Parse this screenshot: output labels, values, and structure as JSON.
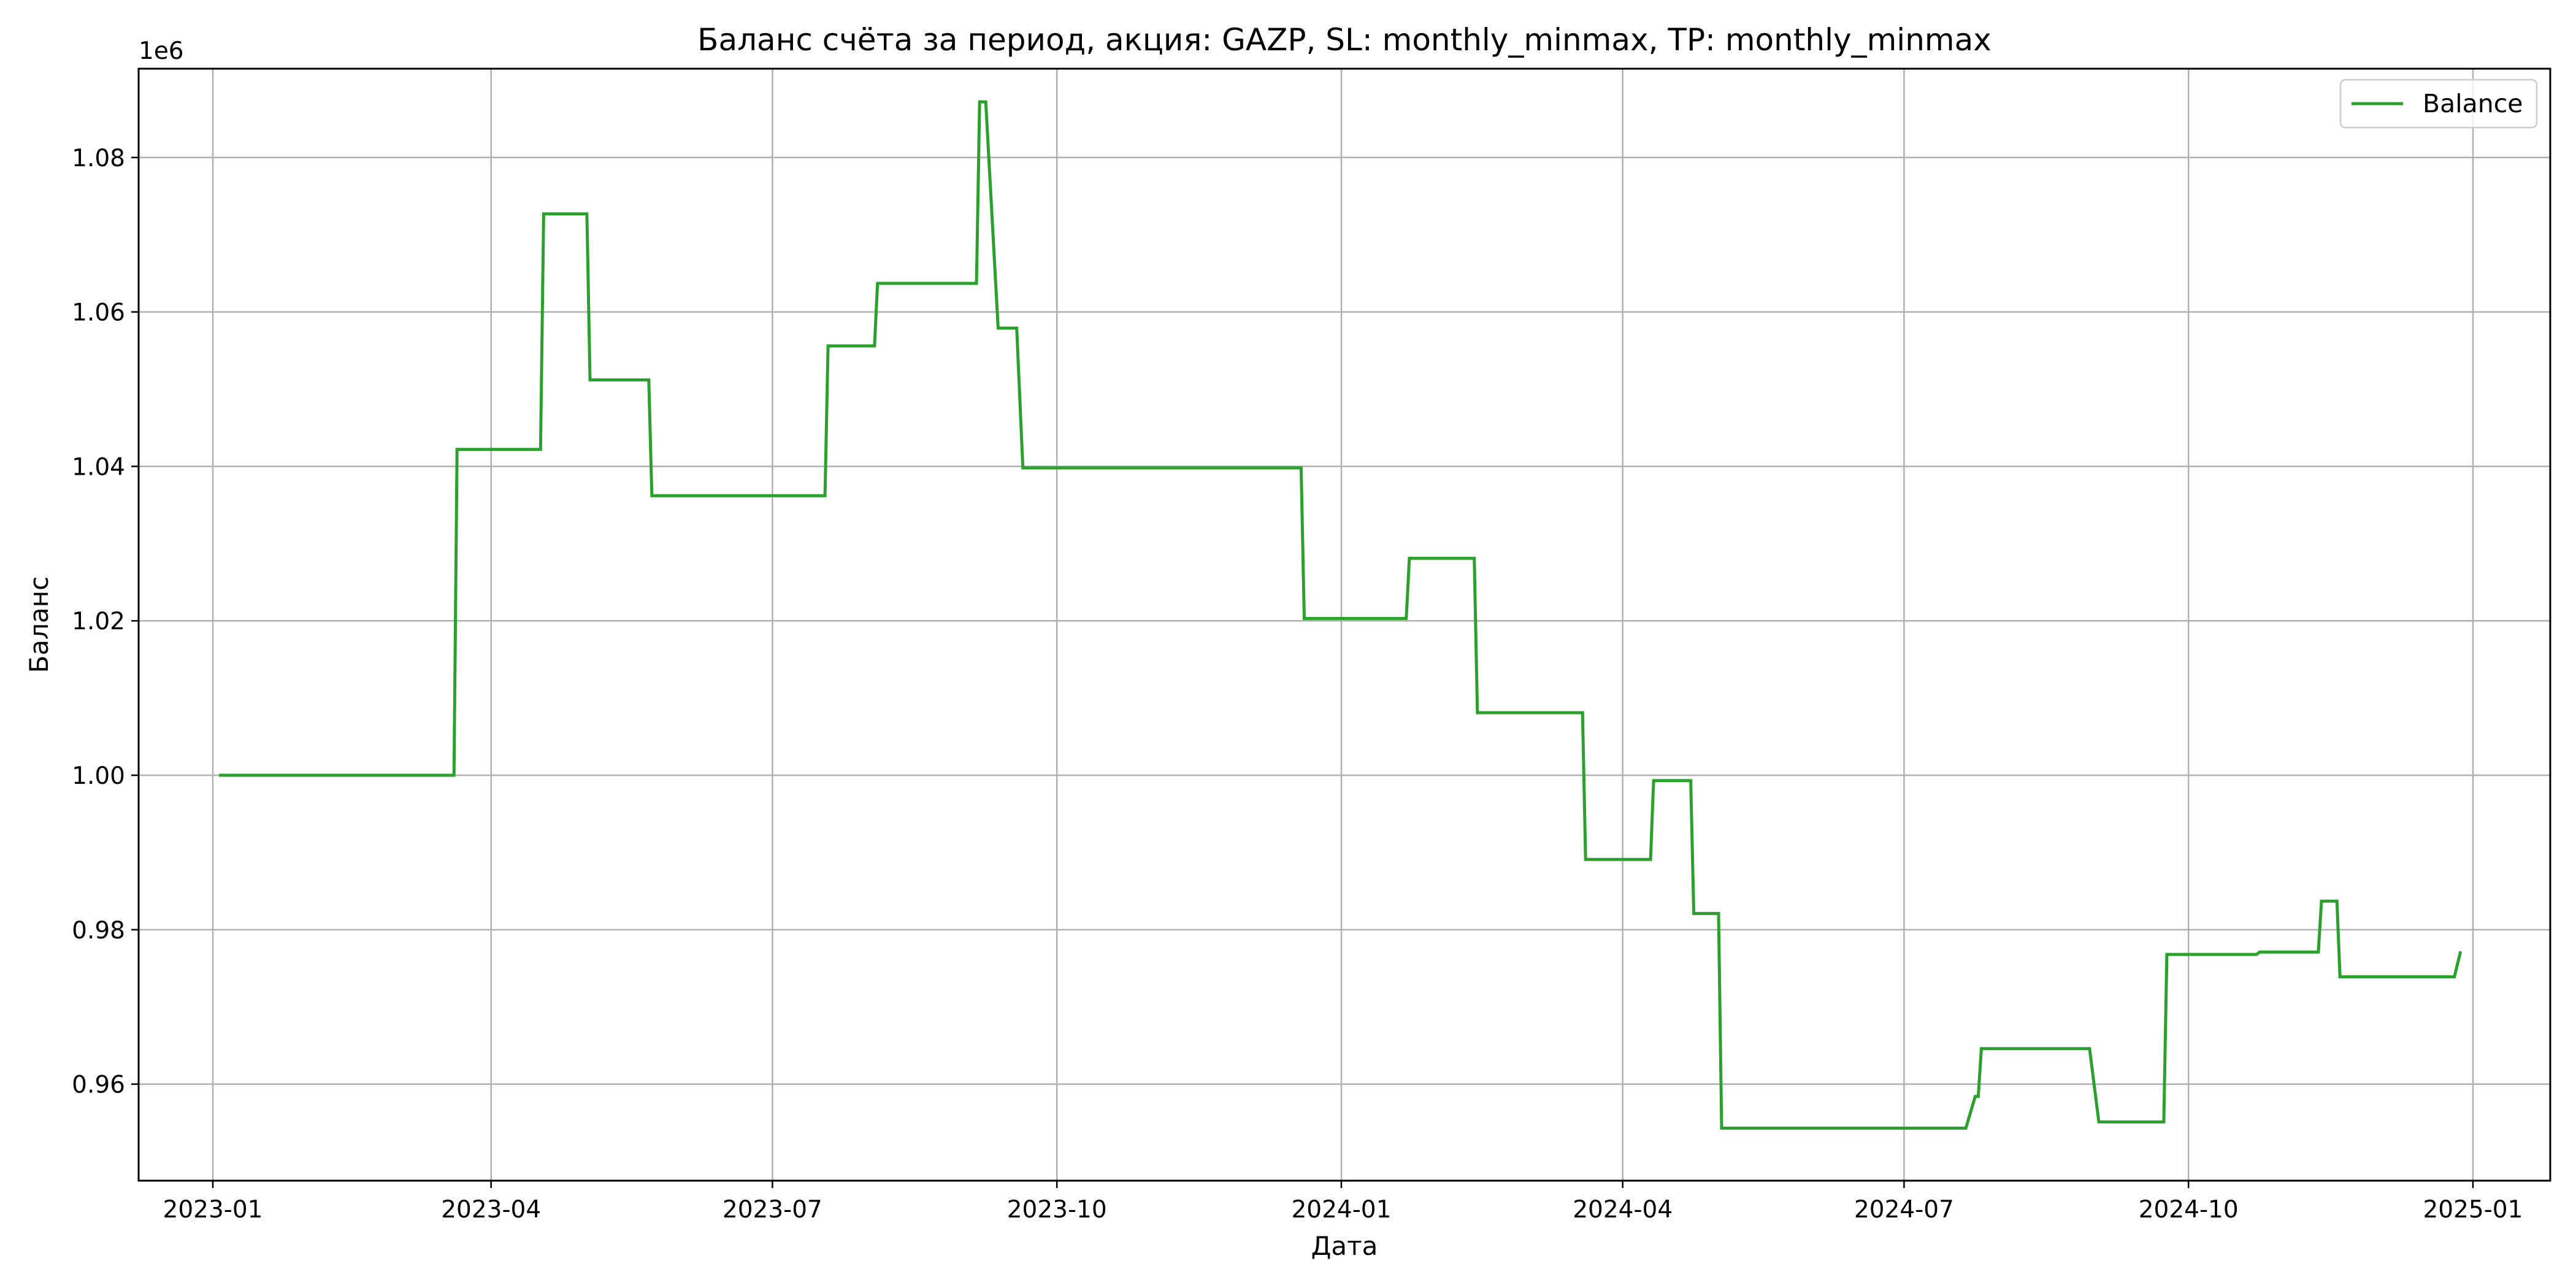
{
  "chart_data": {
    "type": "line",
    "title": "Баланс счёта за период, акция: GAZP, SL: monthly_minmax, TP: monthly_minmax",
    "xlabel": "Дата",
    "ylabel": "Баланс",
    "y_offset_label": "1e6",
    "y_scale": 1000000,
    "xlim": [
      "2022-12-08",
      "2025-01-26"
    ],
    "ylim": [
      0.9475,
      1.0915
    ],
    "x_ticks": [
      "2023-01",
      "2023-04",
      "2023-07",
      "2023-10",
      "2024-01",
      "2024-04",
      "2024-07",
      "2024-10",
      "2025-01"
    ],
    "y_ticks": [
      0.96,
      0.98,
      1.0,
      1.02,
      1.04,
      1.06,
      1.08
    ],
    "y_tick_labels": [
      "0.96",
      "0.98",
      "1.00",
      "1.02",
      "1.04",
      "1.06",
      "1.08"
    ],
    "grid": true,
    "legend_position": "top-right",
    "series": [
      {
        "name": "Balance",
        "color": "#2ca02c",
        "points": [
          [
            "2023-01-03",
            1.0
          ],
          [
            "2023-03-20",
            1.0
          ],
          [
            "2023-03-21",
            1.0422
          ],
          [
            "2023-04-17",
            1.0422
          ],
          [
            "2023-04-18",
            1.0727
          ],
          [
            "2023-05-02",
            1.0727
          ],
          [
            "2023-05-03",
            1.0512
          ],
          [
            "2023-05-22",
            1.0512
          ],
          [
            "2023-05-23",
            1.0362
          ],
          [
            "2023-07-18",
            1.0362
          ],
          [
            "2023-07-19",
            1.0556
          ],
          [
            "2023-08-03",
            1.0556
          ],
          [
            "2023-08-04",
            1.0637
          ],
          [
            "2023-09-05",
            1.0637
          ],
          [
            "2023-09-06",
            1.0872
          ],
          [
            "2023-09-08",
            1.0872
          ],
          [
            "2023-09-12",
            1.0579
          ],
          [
            "2023-09-18",
            1.0579
          ],
          [
            "2023-09-20",
            1.0398
          ],
          [
            "2023-12-19",
            1.0398
          ],
          [
            "2023-12-20",
            1.0203
          ],
          [
            "2024-01-22",
            1.0203
          ],
          [
            "2024-01-23",
            1.0281
          ],
          [
            "2024-02-13",
            1.0281
          ],
          [
            "2024-02-14",
            1.0081
          ],
          [
            "2024-03-19",
            1.0081
          ],
          [
            "2024-03-20",
            0.9891
          ],
          [
            "2024-04-10",
            0.9891
          ],
          [
            "2024-04-11",
            0.9993
          ],
          [
            "2024-04-23",
            0.9993
          ],
          [
            "2024-04-24",
            0.9821
          ],
          [
            "2024-05-02",
            0.9821
          ],
          [
            "2024-05-03",
            0.9543
          ],
          [
            "2024-07-21",
            0.9543
          ],
          [
            "2024-07-24",
            0.9584
          ],
          [
            "2024-07-25",
            0.9584
          ],
          [
            "2024-07-26",
            0.9646
          ],
          [
            "2024-08-30",
            0.9646
          ],
          [
            "2024-09-02",
            0.9551
          ],
          [
            "2024-09-23",
            0.9551
          ],
          [
            "2024-09-24",
            0.9768
          ],
          [
            "2024-10-23",
            0.9768
          ],
          [
            "2024-10-24",
            0.9771
          ],
          [
            "2024-11-12",
            0.9771
          ],
          [
            "2024-11-13",
            0.9837
          ],
          [
            "2024-11-18",
            0.9837
          ],
          [
            "2024-11-19",
            0.9739
          ],
          [
            "2024-12-26",
            0.9739
          ],
          [
            "2024-12-28",
            0.9772
          ]
        ]
      }
    ]
  }
}
